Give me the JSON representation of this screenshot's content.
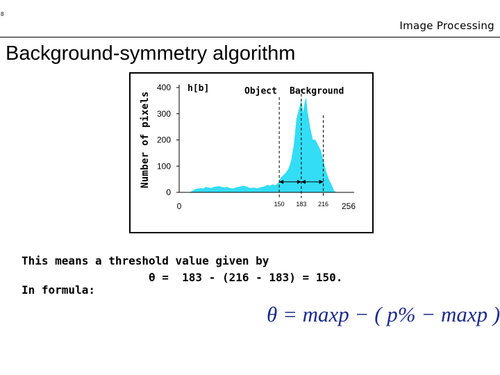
{
  "slide": {
    "corner_mark": "8",
    "header_label": "Image Processing",
    "title": "Background-symmetry algorithm"
  },
  "chart_data": {
    "type": "area",
    "ylabel": "Number of pixels",
    "series_label": "h[b]",
    "xlim": [
      0,
      256
    ],
    "ylim": [
      0,
      400
    ],
    "yticks": [
      0,
      100,
      200,
      300,
      400
    ],
    "xticks_labels": [
      "0",
      "256"
    ],
    "marker_labels": [
      "150",
      "183",
      "216"
    ],
    "region_labels": [
      "Object",
      "Background"
    ],
    "fill_color": "#33ddf5",
    "x": [
      0,
      4,
      8,
      12,
      16,
      20,
      24,
      28,
      32,
      36,
      40,
      44,
      48,
      52,
      56,
      60,
      64,
      68,
      72,
      76,
      80,
      84,
      88,
      92,
      96,
      100,
      104,
      108,
      112,
      116,
      120,
      124,
      128,
      132,
      136,
      140,
      144,
      148,
      150,
      152,
      156,
      160,
      164,
      168,
      172,
      176,
      180,
      183,
      186,
      188,
      190,
      192,
      196,
      200,
      204,
      208,
      212,
      216,
      220,
      224,
      228,
      232,
      236,
      240,
      244,
      248,
      252,
      256
    ],
    "values": [
      0,
      0,
      0,
      0,
      0,
      5,
      12,
      14,
      15,
      14,
      20,
      18,
      16,
      20,
      22,
      23,
      20,
      18,
      20,
      16,
      14,
      17,
      20,
      22,
      25,
      22,
      18,
      16,
      18,
      15,
      17,
      20,
      22,
      28,
      25,
      30,
      26,
      35,
      40,
      55,
      65,
      75,
      90,
      120,
      180,
      280,
      320,
      350,
      300,
      340,
      360,
      310,
      250,
      200,
      200,
      180,
      160,
      120,
      80,
      50,
      30,
      5,
      0,
      0,
      0,
      0,
      0,
      0
    ]
  },
  "text": {
    "line1": "This means a threshold value given by",
    "line2": "θ =  183 - (216 - 183) = 150.",
    "line3": "In formula:"
  },
  "formula": {
    "expression": "θ = maxp − ( p% − maxp )",
    "color": "#1d2b8a"
  }
}
